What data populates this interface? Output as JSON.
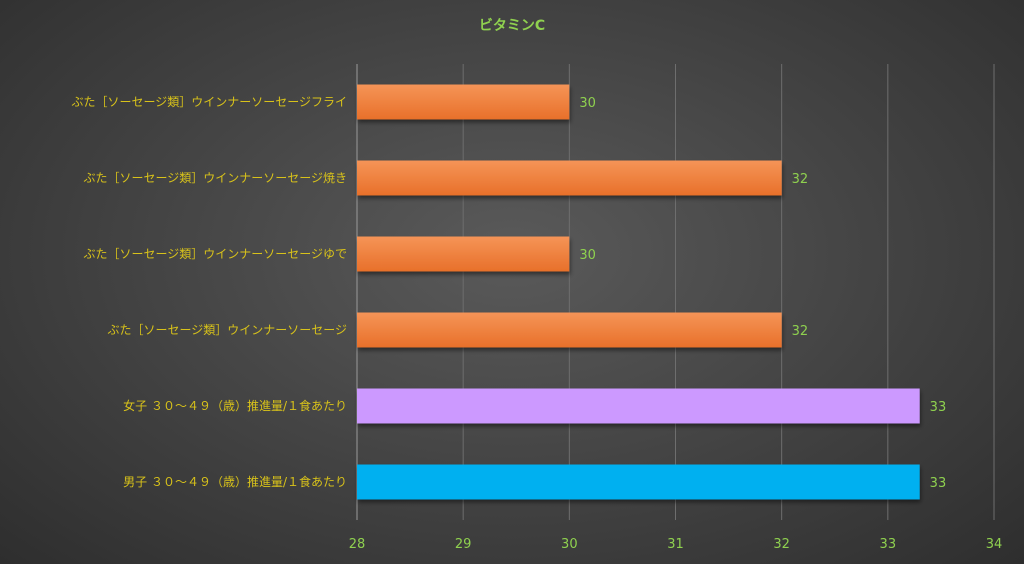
{
  "chart_data": {
    "type": "bar",
    "orientation": "horizontal",
    "title": "ビタミンC",
    "xlim": [
      28,
      34
    ],
    "xticks": [
      28,
      29,
      30,
      31,
      32,
      33,
      34
    ],
    "grid": true,
    "legend": "none",
    "categories": [
      "ぶた［ソーセージ類］ウインナーソーセージフライ",
      "ぶた［ソーセージ類］ウインナーソーセージ焼き",
      "ぶた［ソーセージ類］ウインナーソーセージゆで",
      "ぶた［ソーセージ類］ウインナーソーセージ",
      "女子 ３０～４９（歳）推進量/１食あたり",
      "男子 ３０～４９（歳）推進量/１食あたり"
    ],
    "values": [
      30,
      32,
      30,
      32,
      33.3,
      33.3
    ],
    "data_labels": [
      "30",
      "32",
      "30",
      "32",
      "33",
      "33"
    ],
    "colors": [
      "#ed7d31",
      "#ed7d31",
      "#ed7d31",
      "#ed7d31",
      "#cc99ff",
      "#00b0f0"
    ]
  }
}
